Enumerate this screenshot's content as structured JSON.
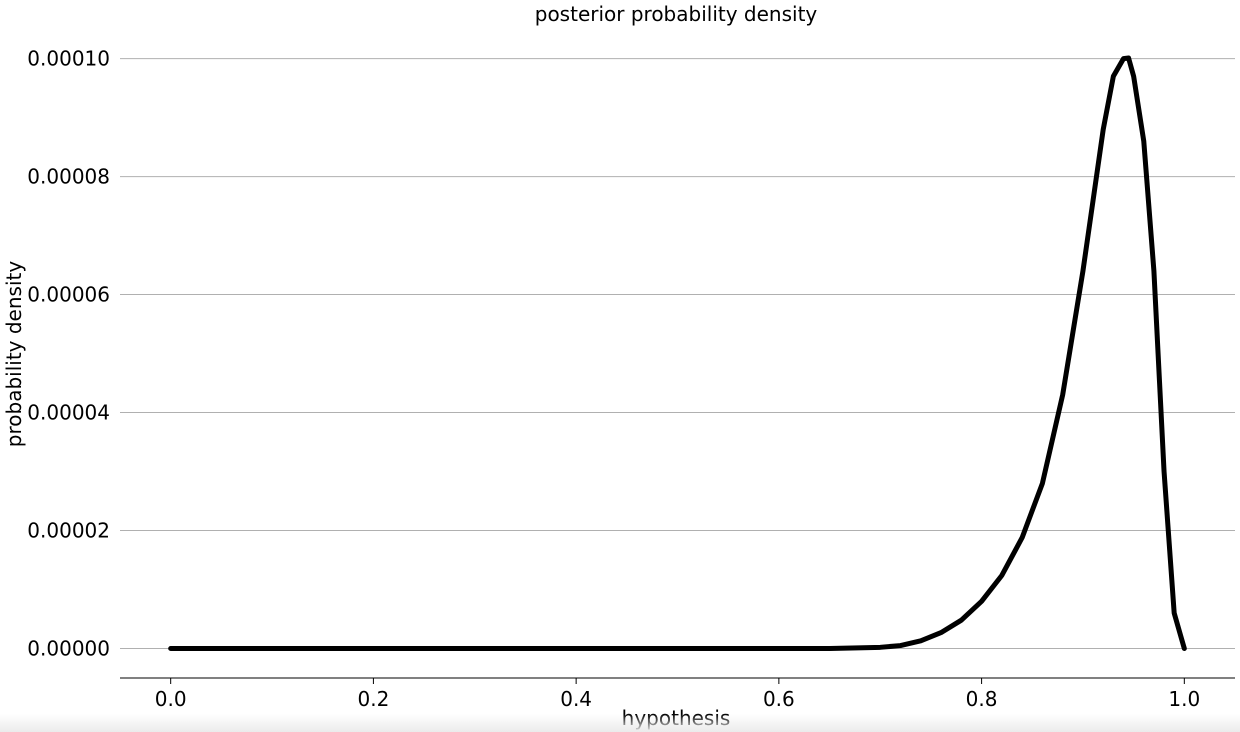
{
  "chart_data": {
    "type": "line",
    "title": "posterior probability density",
    "xlabel": "hypothesis",
    "ylabel": "probability density",
    "xlim": [
      -0.05,
      1.05
    ],
    "ylim": [
      -5e-06,
      0.000104
    ],
    "x_ticks": [
      0.0,
      0.2,
      0.4,
      0.6,
      0.8,
      1.0
    ],
    "x_tick_labels": [
      "0.0",
      "0.2",
      "0.4",
      "0.6",
      "0.8",
      "1.0"
    ],
    "y_ticks": [
      0.0,
      2e-05,
      4e-05,
      6e-05,
      8e-05,
      0.0001
    ],
    "y_tick_labels": [
      "0.00000",
      "0.00002",
      "0.00004",
      "0.00006",
      "0.00008",
      "0.00010"
    ],
    "grid": "horizontal",
    "legend": "none",
    "line_color": "#000000",
    "series": [
      {
        "x": [
          0.0,
          0.1,
          0.2,
          0.3,
          0.4,
          0.5,
          0.6,
          0.65,
          0.7,
          0.72,
          0.74,
          0.76,
          0.78,
          0.8,
          0.82,
          0.84,
          0.86,
          0.88,
          0.9,
          0.91,
          0.92,
          0.93,
          0.94,
          0.945,
          0.95,
          0.96,
          0.97,
          0.98,
          0.99,
          1.0
        ],
        "values": [
          0.0,
          0.0,
          0.0,
          0.0,
          0.0,
          0.0,
          0.0,
          0.0,
          2e-07,
          5e-07,
          1.3e-06,
          2.7e-06,
          4.8e-06,
          8e-06,
          1.24e-05,
          1.88e-05,
          2.8e-05,
          4.3e-05,
          6.4e-05,
          7.6e-05,
          8.8e-05,
          9.7e-05,
          0.0001,
          0.0001001,
          9.7e-05,
          8.6e-05,
          6.4e-05,
          3e-05,
          6e-06,
          0.0
        ]
      }
    ]
  }
}
